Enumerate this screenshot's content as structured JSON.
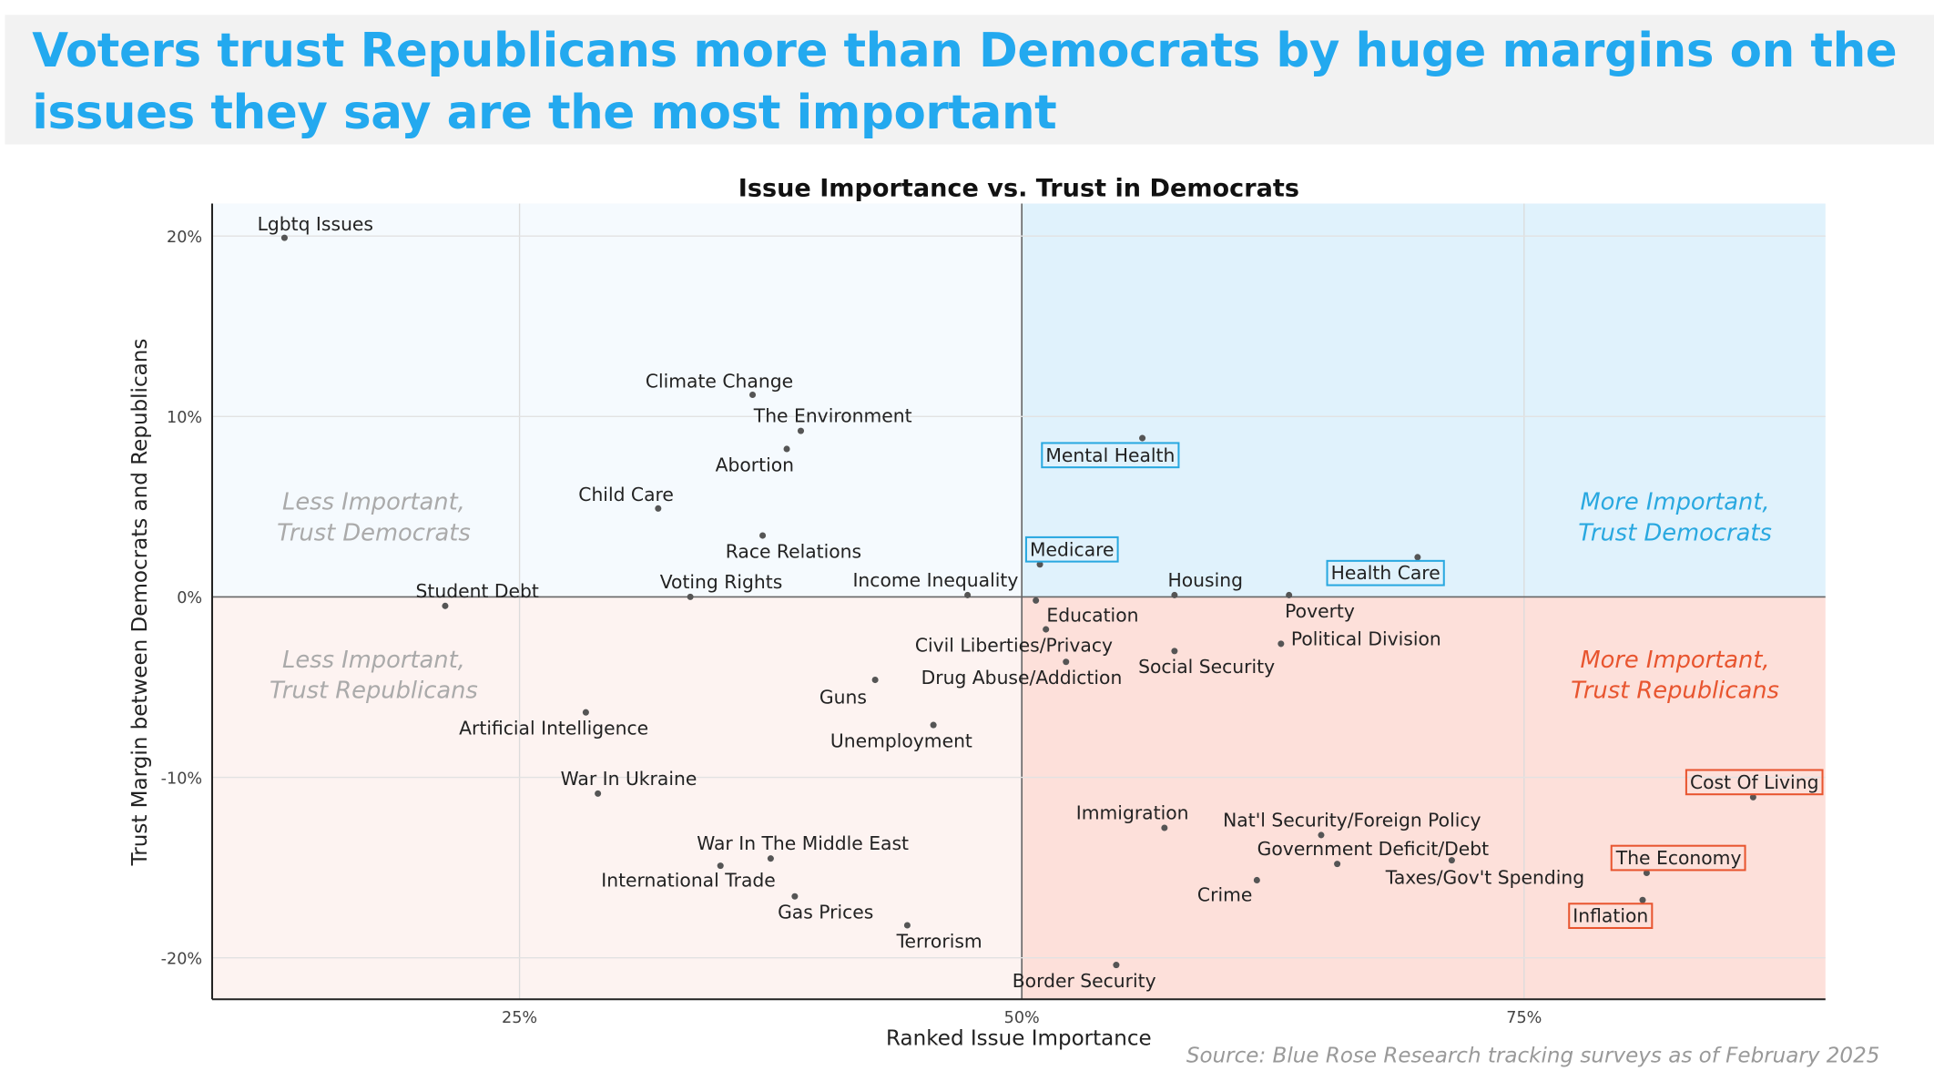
{
  "headline": "Voters trust Republicans more than Democrats by huge margins on the issues they say are the most important",
  "source": "Source: Blue Rose Research tracking surveys as of February 2025",
  "colors": {
    "dem_blue": "#29a8e0",
    "rep_red": "#e8552f",
    "headline_blue": "#23a9ef",
    "quad_dem_more": "#e0f2fc",
    "quad_dem_less": "#f5fafe",
    "quad_rep_more": "#fde0da",
    "quad_rep_less": "#fdf3f1"
  },
  "chart_data": {
    "type": "scatter",
    "title": "Issue Importance vs. Trust in Democrats",
    "xlabel": "Ranked Issue Importance",
    "ylabel": "Trust Margin between Democrats and Republicans",
    "xlim": [
      9.7,
      90
    ],
    "ylim": [
      -22.3,
      21.8
    ],
    "x_ticks": [
      {
        "value": 25,
        "label": "25%"
      },
      {
        "value": 50,
        "label": "50%"
      },
      {
        "value": 75,
        "label": "75%"
      }
    ],
    "y_ticks": [
      {
        "value": 20,
        "label": "20%"
      },
      {
        "value": 10,
        "label": "10%"
      },
      {
        "value": 0,
        "label": "0%"
      },
      {
        "value": -10,
        "label": "-10%"
      },
      {
        "value": -20,
        "label": "-20%"
      }
    ],
    "grid": true,
    "quadrant_dividers": {
      "x": 50,
      "y": 0
    },
    "quadrant_labels": [
      {
        "text": [
          "Less Important,",
          "Trust Democrats"
        ],
        "quadrant": "top-left",
        "color": "#aaaaaa"
      },
      {
        "text": [
          "More Important,",
          "Trust Democrats"
        ],
        "quadrant": "top-right",
        "color": "#29a8e0"
      },
      {
        "text": [
          "Less Important,",
          "Trust Republicans"
        ],
        "quadrant": "bottom-left",
        "color": "#aaaaaa"
      },
      {
        "text": [
          "More Important,",
          "Trust Republicans"
        ],
        "quadrant": "bottom-right",
        "color": "#e8552f"
      }
    ],
    "points": [
      {
        "label": "Lgbtq Issues",
        "x": 13.3,
        "y": 19.9
      },
      {
        "label": "Climate Change",
        "x": 36.6,
        "y": 11.2
      },
      {
        "label": "The Environment",
        "x": 39.0,
        "y": 9.2
      },
      {
        "label": "Abortion",
        "x": 38.3,
        "y": 8.2
      },
      {
        "label": "Child Care",
        "x": 31.9,
        "y": 4.9
      },
      {
        "label": "Race Relations",
        "x": 37.1,
        "y": 3.4
      },
      {
        "label": "Student Debt",
        "x": 21.3,
        "y": -0.5
      },
      {
        "label": "Voting Rights",
        "x": 33.5,
        "y": 0.0
      },
      {
        "label": "Income Inequality",
        "x": 47.3,
        "y": 0.1
      },
      {
        "label": "Mental Health",
        "x": 56.0,
        "y": 8.8,
        "highlight": "dem"
      },
      {
        "label": "Medicare",
        "x": 50.9,
        "y": 1.8,
        "highlight": "dem"
      },
      {
        "label": "Housing",
        "x": 57.6,
        "y": 0.1
      },
      {
        "label": "Health Care",
        "x": 69.7,
        "y": 2.2,
        "highlight": "dem"
      },
      {
        "label": "Poverty",
        "x": 63.3,
        "y": 0.1
      },
      {
        "label": "Education",
        "x": 50.7,
        "y": -0.2
      },
      {
        "label": "Political Division",
        "x": 62.9,
        "y": -2.6
      },
      {
        "label": "Civil Liberties/Privacy",
        "x": 51.2,
        "y": -1.8
      },
      {
        "label": "Social Security",
        "x": 57.6,
        "y": -3.0
      },
      {
        "label": "Drug Abuse/Addiction",
        "x": 52.2,
        "y": -3.6
      },
      {
        "label": "Guns",
        "x": 42.7,
        "y": -4.6
      },
      {
        "label": "Artificial Intelligence",
        "x": 28.3,
        "y": -6.4
      },
      {
        "label": "Unemployment",
        "x": 45.6,
        "y": -7.1
      },
      {
        "label": "War In Ukraine",
        "x": 28.9,
        "y": -10.9
      },
      {
        "label": "Cost Of Living",
        "x": 86.4,
        "y": -11.1,
        "highlight": "rep"
      },
      {
        "label": "Immigration",
        "x": 57.1,
        "y": -12.8
      },
      {
        "label": "Nat'l Security/Foreign Policy",
        "x": 64.9,
        "y": -13.2
      },
      {
        "label": "Government Deficit/Debt",
        "x": 65.7,
        "y": -14.8
      },
      {
        "label": "The Economy",
        "x": 81.1,
        "y": -15.3,
        "highlight": "rep"
      },
      {
        "label": "Taxes/Gov't Spending",
        "x": 71.4,
        "y": -14.6
      },
      {
        "label": "War In The Middle East",
        "x": 37.5,
        "y": -14.5
      },
      {
        "label": "International Trade",
        "x": 35.0,
        "y": -14.9
      },
      {
        "label": "Crime",
        "x": 61.7,
        "y": -15.7
      },
      {
        "label": "Inflation",
        "x": 80.9,
        "y": -16.8,
        "highlight": "rep"
      },
      {
        "label": "Gas Prices",
        "x": 38.7,
        "y": -16.6
      },
      {
        "label": "Terrorism",
        "x": 44.3,
        "y": -18.2
      },
      {
        "label": "Border Security",
        "x": 54.7,
        "y": -20.4
      }
    ]
  }
}
